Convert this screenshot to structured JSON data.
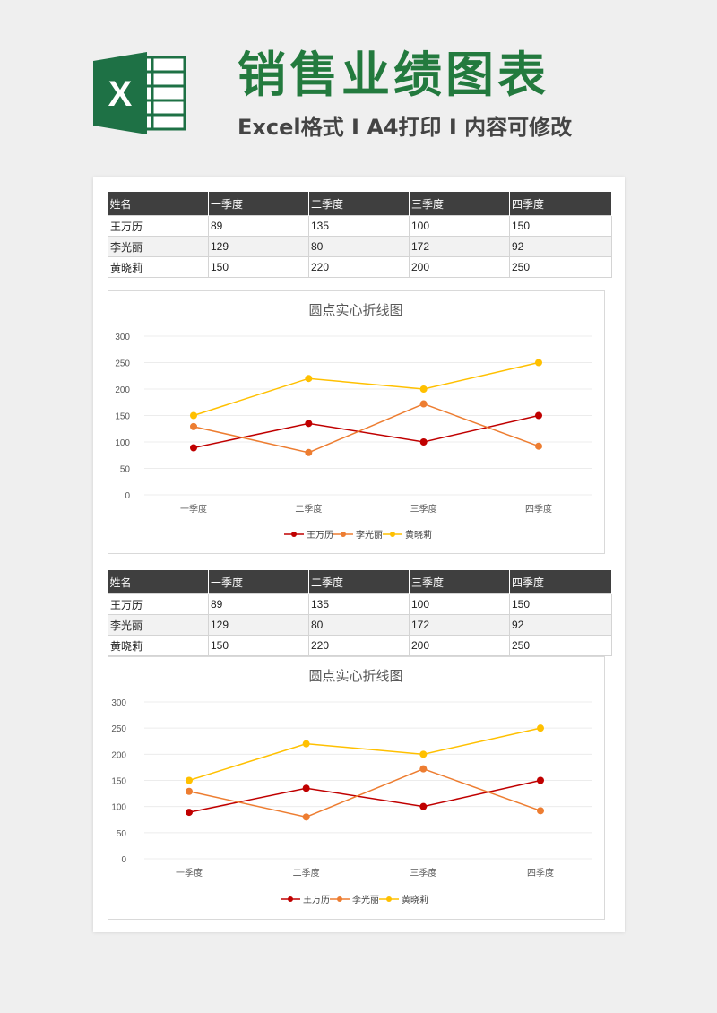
{
  "header": {
    "title": "销售业绩图表",
    "subtitle": "Excel格式 I A4打印 I 内容可修改",
    "logo_letter": "X"
  },
  "table": {
    "headers": [
      "姓名",
      "一季度",
      "二季度",
      "三季度",
      "四季度"
    ],
    "rows": [
      [
        "王万历",
        "89",
        "135",
        "100",
        "150"
      ],
      [
        "李光丽",
        "129",
        "80",
        "172",
        "92"
      ],
      [
        "黄晓莉",
        "150",
        "220",
        "200",
        "250"
      ]
    ]
  },
  "chart_data": [
    {
      "type": "line",
      "title": "圆点实心折线图",
      "categories": [
        "一季度",
        "二季度",
        "三季度",
        "四季度"
      ],
      "series": [
        {
          "name": "王万历",
          "values": [
            89,
            135,
            100,
            150
          ],
          "color": "#c00000"
        },
        {
          "name": "李光丽",
          "values": [
            129,
            80,
            172,
            92
          ],
          "color": "#ed7d31"
        },
        {
          "name": "黄晓莉",
          "values": [
            150,
            220,
            200,
            250
          ],
          "color": "#ffc000"
        }
      ],
      "yticks": [
        0,
        50,
        100,
        150,
        200,
        250,
        300
      ],
      "ylim": [
        0,
        300
      ],
      "grid": true,
      "legend": "bottom"
    },
    {
      "type": "line",
      "title": "圆点实心折线图",
      "categories": [
        "一季度",
        "二季度",
        "三季度",
        "四季度"
      ],
      "series": [
        {
          "name": "王万历",
          "values": [
            89,
            135,
            100,
            150
          ],
          "color": "#c00000"
        },
        {
          "name": "李光丽",
          "values": [
            129,
            80,
            172,
            92
          ],
          "color": "#ed7d31"
        },
        {
          "name": "黄晓莉",
          "values": [
            150,
            220,
            200,
            250
          ],
          "color": "#ffc000"
        }
      ],
      "yticks": [
        0,
        50,
        100,
        150,
        200,
        250,
        300
      ],
      "ylim": [
        0,
        300
      ],
      "grid": true,
      "legend": "bottom"
    }
  ]
}
